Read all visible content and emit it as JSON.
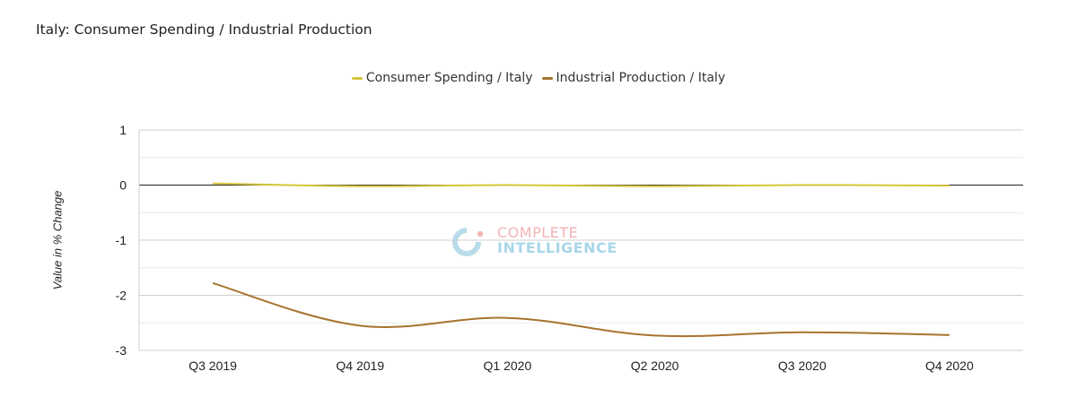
{
  "title": "Italy: Consumer Spending / Industrial Production",
  "watermark": {
    "line1": "COMPLETE",
    "line2": "INTELLIGENCE"
  },
  "chart_data": {
    "type": "line",
    "title": "Italy: Consumer Spending / Industrial Production",
    "xlabel": "",
    "ylabel": "Value in % Change",
    "categories": [
      "Q3 2019",
      "Q4 2019",
      "Q1 2020",
      "Q2 2020",
      "Q3 2020",
      "Q4 2020"
    ],
    "ylim": [
      -3,
      1
    ],
    "yticks": [
      1,
      0,
      -1,
      -2,
      -3
    ],
    "legend_position": "top-center",
    "grid": true,
    "series": [
      {
        "name": "Consumer Spending / Italy",
        "color": "#d6c43a",
        "values": [
          0.03,
          -0.02,
          0.0,
          -0.02,
          0.0,
          -0.01
        ]
      },
      {
        "name": "Industrial Production / Italy",
        "color": "#a8732f",
        "values": [
          -1.78,
          -2.55,
          -2.41,
          -2.73,
          -2.67,
          -2.72
        ]
      }
    ]
  }
}
